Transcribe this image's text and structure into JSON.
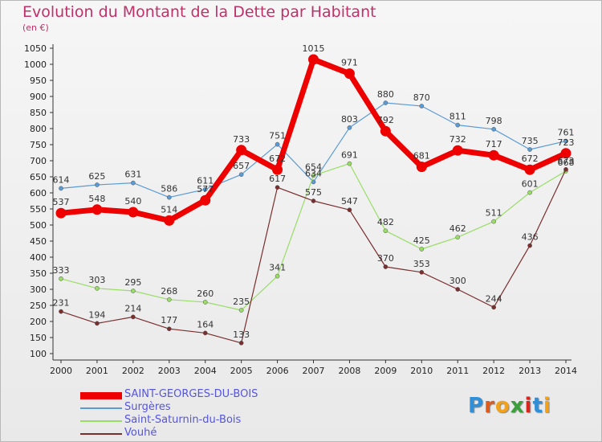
{
  "title": "Evolution du Montant de la Dette par Habitant",
  "subtitle": "(en €)",
  "logo": {
    "letters": [
      "P",
      "r",
      "o",
      "x",
      "i",
      "t",
      "i"
    ],
    "colors": [
      "#2f8fd8",
      "#e05a1c",
      "#f2a21a",
      "#3aa03a",
      "#d8261c",
      "#2f8fd8",
      "#f2a21a"
    ]
  },
  "chart_data": {
    "type": "line",
    "x": [
      "2000",
      "2001",
      "2002",
      "2003",
      "2004",
      "2005",
      "2006",
      "2007",
      "2008",
      "2009",
      "2010",
      "2011",
      "2012",
      "2013",
      "2014"
    ],
    "ylim": [
      100,
      1050
    ],
    "yticks": [
      100,
      150,
      200,
      250,
      300,
      350,
      400,
      450,
      500,
      550,
      600,
      650,
      700,
      750,
      800,
      850,
      900,
      950,
      1000,
      1050
    ],
    "grid": false,
    "legend_position": "bottom",
    "series": [
      {
        "name": "Surgères",
        "color": "#5b9bd5",
        "width": 1.2,
        "marker": 2.6,
        "values": [
          614,
          625,
          631,
          586,
          611,
          657,
          751,
          634,
          803,
          880,
          870,
          811,
          798,
          735,
          761
        ]
      },
      {
        "name": "Saint-Saturnin-du-Bois",
        "color": "#99dd66",
        "width": 1.2,
        "marker": 2.6,
        "values": [
          333,
          303,
          295,
          268,
          260,
          235,
          341,
          654,
          691,
          482,
          425,
          462,
          511,
          601,
          668
        ]
      },
      {
        "name": "Vouhé",
        "color": "#7a2e2e",
        "width": 1.2,
        "marker": 2.6,
        "values": [
          231,
          194,
          214,
          177,
          164,
          133,
          617,
          575,
          547,
          370,
          353,
          300,
          244,
          436,
          673
        ]
      },
      {
        "name": "SAINT-GEORGES-DU-BOIS",
        "color": "#ee0000",
        "width": 7,
        "marker": 6.5,
        "values": [
          537,
          548,
          540,
          514,
          577,
          733,
          672,
          1015,
          971,
          792,
          681,
          732,
          717,
          672,
          723
        ]
      }
    ]
  }
}
